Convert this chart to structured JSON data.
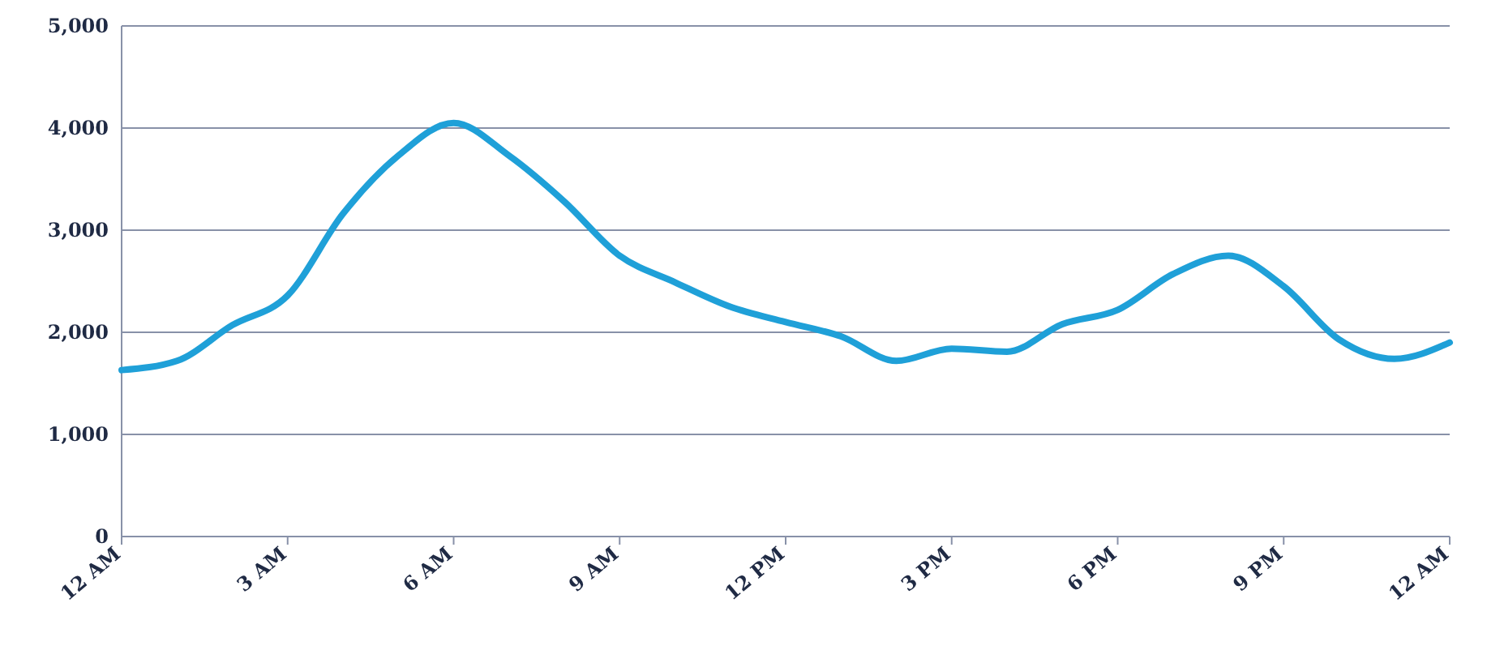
{
  "chart_data": {
    "type": "line",
    "categories": [
      "12 AM",
      null,
      null,
      "3 AM",
      null,
      null,
      "6 AM",
      null,
      null,
      "9 AM",
      null,
      null,
      "12 PM",
      null,
      null,
      "3 PM",
      null,
      null,
      "6 PM",
      null,
      null,
      "9 PM",
      null,
      null,
      "12 AM"
    ],
    "series": [
      {
        "color": "#1fa0d8",
        "values": [
          1630,
          1720,
          2070,
          2360,
          3160,
          3730,
          4050,
          3730,
          3280,
          2750,
          2490,
          2250,
          2100,
          1960,
          1720,
          1840,
          1810,
          2080,
          2220,
          2570,
          2750,
          2450,
          1930,
          1740,
          1900
        ]
      }
    ],
    "ylim": [
      0,
      5000
    ],
    "yticks": [
      {
        "value": 0,
        "label": "0"
      },
      {
        "value": 1000,
        "label": "1,000"
      },
      {
        "value": 2000,
        "label": "2,000"
      },
      {
        "value": 3000,
        "label": "3,000"
      },
      {
        "value": 4000,
        "label": "4,000"
      },
      {
        "value": 5000,
        "label": "5,000"
      }
    ],
    "grid": "y",
    "marker": "none",
    "line_style": "solid"
  }
}
